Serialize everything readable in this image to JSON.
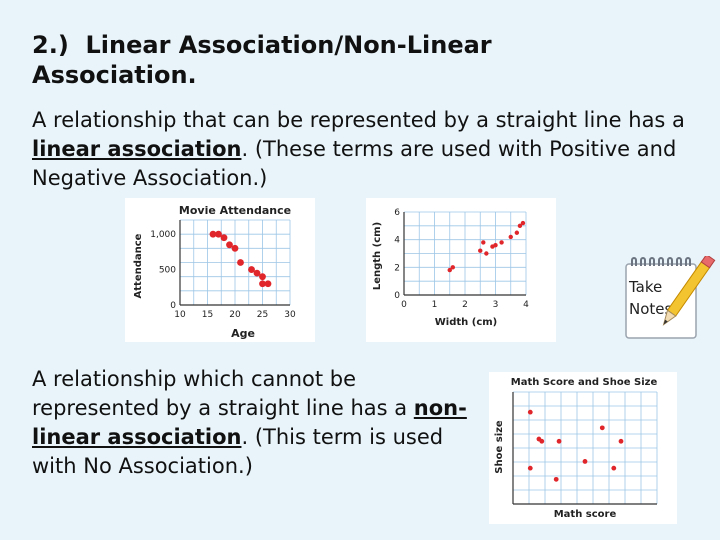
{
  "heading": {
    "number": "2.)",
    "title_line1": "Linear Association/Non-Linear",
    "title_line2": "Association."
  },
  "para1": {
    "before": "A relationship that can be represented by a straight line has a ",
    "term": "linear association",
    "after": ".  (These terms are used with Positive and Negative Association.)"
  },
  "para2": {
    "before": "A relationship which cannot be represented by a straight line has a ",
    "term": "non-linear association",
    "after": ".  (This term is used with No Association.)"
  },
  "notes_icon": {
    "icon": "notepad-pencil-icon",
    "line1": "Take",
    "line2": "Notes"
  },
  "chart_data": [
    {
      "type": "scatter",
      "title": "Movie Attendance",
      "xlabel": "Age",
      "ylabel": "Attendance",
      "xlim": [
        10,
        30
      ],
      "ylim": [
        0,
        1200
      ],
      "xticks": [
        "10",
        "15",
        "20",
        "25",
        "30"
      ],
      "yticks": [
        "0",
        "500",
        "1,000"
      ],
      "grid": true,
      "color": "#e0262a",
      "points": [
        [
          16,
          1000
        ],
        [
          17,
          1000
        ],
        [
          18,
          950
        ],
        [
          19,
          850
        ],
        [
          20,
          800
        ],
        [
          21,
          600
        ],
        [
          23,
          500
        ],
        [
          24,
          450
        ],
        [
          25,
          400
        ],
        [
          25,
          300
        ],
        [
          26,
          300
        ]
      ]
    },
    {
      "type": "scatter",
      "title": "",
      "xlabel": "Width (cm)",
      "ylabel": "Length (cm)",
      "xlim": [
        0,
        4
      ],
      "ylim": [
        0,
        6
      ],
      "xticks": [
        "0",
        "1",
        "2",
        "3",
        "4"
      ],
      "yticks": [
        "0",
        "2",
        "4",
        "6"
      ],
      "grid": true,
      "color": "#e0262a",
      "points": [
        [
          1.5,
          1.8
        ],
        [
          1.6,
          2.0
        ],
        [
          2.5,
          3.2
        ],
        [
          2.6,
          3.8
        ],
        [
          2.7,
          3.0
        ],
        [
          2.9,
          3.5
        ],
        [
          3.0,
          3.6
        ],
        [
          3.2,
          3.8
        ],
        [
          3.5,
          4.2
        ],
        [
          3.7,
          4.5
        ],
        [
          3.8,
          5.0
        ],
        [
          3.9,
          5.2
        ]
      ]
    },
    {
      "type": "scatter",
      "title": "Math Score and Shoe Size",
      "xlabel": "Math score",
      "ylabel": "Shoe size",
      "xlim": [
        0,
        10
      ],
      "ylim": [
        0,
        10
      ],
      "xticks": [],
      "yticks": [],
      "grid": true,
      "color": "#e0262a",
      "points": [
        [
          1.2,
          8.2
        ],
        [
          2.0,
          5.6
        ],
        [
          3.2,
          5.6
        ],
        [
          5.0,
          3.8
        ],
        [
          6.2,
          6.8
        ],
        [
          7.5,
          5.6
        ],
        [
          1.2,
          3.2
        ],
        [
          3.0,
          2.2
        ],
        [
          1.8,
          5.8
        ],
        [
          7.0,
          3.2
        ]
      ]
    }
  ]
}
